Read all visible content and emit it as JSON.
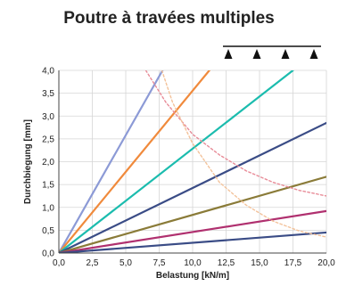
{
  "chart_data": {
    "type": "line",
    "title": "Poutre à travées multiples",
    "xlabel": "Belastung [kN/m]",
    "ylabel": "Durchbiegung [mm]",
    "xlim": [
      0,
      20
    ],
    "ylim": [
      0,
      4
    ],
    "x_ticks": [
      "0,0",
      "2,5",
      "5,0",
      "7,5",
      "10,0",
      "12,5",
      "15,0",
      "17,5",
      "20,0"
    ],
    "y_ticks": [
      "0,0",
      "0,5",
      "1,0",
      "1,5",
      "2,0",
      "2,5",
      "3,0",
      "3,5",
      "4,0"
    ],
    "grid": true,
    "legend": "none",
    "icon": "multi-span-beam-icon",
    "series": [
      {
        "color": "#8c9ad6",
        "style": "solid",
        "x": [
          0,
          7.75
        ],
        "y": [
          0,
          4.0
        ]
      },
      {
        "color": "#f08a3c",
        "style": "solid",
        "x": [
          0,
          11.25
        ],
        "y": [
          0,
          4.0
        ]
      },
      {
        "color": "#1bbcae",
        "style": "solid",
        "x": [
          0,
          17.5
        ],
        "y": [
          0,
          4.0
        ]
      },
      {
        "color": "#3a4c86",
        "style": "solid",
        "x": [
          0,
          20
        ],
        "y": [
          0,
          2.85
        ]
      },
      {
        "color": "#8a7b38",
        "style": "solid",
        "x": [
          0,
          20
        ],
        "y": [
          0,
          1.67
        ]
      },
      {
        "color": "#b0306f",
        "style": "solid",
        "x": [
          0,
          20
        ],
        "y": [
          0,
          0.92
        ]
      },
      {
        "color": "#3a4c86",
        "style": "solid",
        "x": [
          0,
          20
        ],
        "y": [
          0,
          0.45
        ]
      },
      {
        "color": "#e88c98",
        "style": "dashed",
        "x": [
          6.5,
          8,
          10,
          12,
          14,
          16,
          18,
          20
        ],
        "y": [
          4.0,
          3.3,
          2.6,
          2.15,
          1.8,
          1.55,
          1.37,
          1.25
        ]
      },
      {
        "color": "#f3c29a",
        "style": "dashed",
        "x": [
          7.7,
          8.5,
          10,
          12,
          14,
          16,
          18,
          20
        ],
        "y": [
          4.0,
          3.3,
          2.4,
          1.55,
          1.05,
          0.7,
          0.48,
          0.35
        ]
      }
    ]
  }
}
